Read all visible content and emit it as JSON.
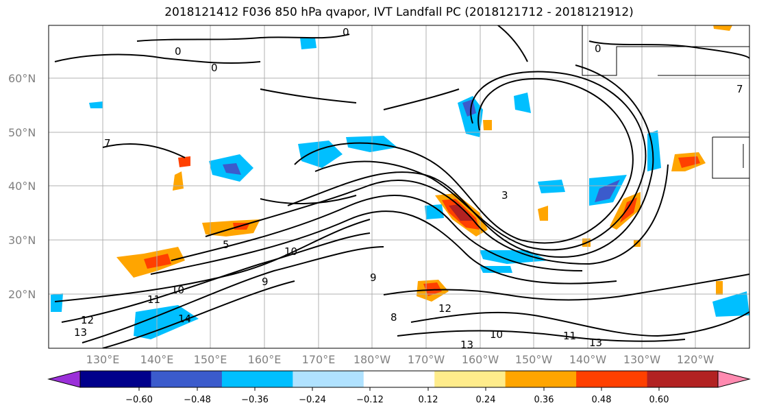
{
  "title": "2018121412 F036 850 hPa qvapor, IVT Landfall PC (2018121712 - 2018121912)",
  "lat_labels": [
    "60°N",
    "50°N",
    "40°N",
    "30°N",
    "20°N"
  ],
  "lon_labels": [
    "130°E",
    "140°E",
    "150°E",
    "160°E",
    "170°E",
    "180°W",
    "170°W",
    "160°W",
    "150°W",
    "140°W",
    "130°W",
    "120°W"
  ],
  "contour_labels": [
    "0",
    "0",
    "0",
    "0",
    "7",
    "3",
    "5",
    "10",
    "11",
    "10",
    "12",
    "13",
    "14",
    "8",
    "9",
    "12",
    "13",
    "10",
    "11",
    "13",
    "7",
    "9"
  ],
  "colorbar": {
    "colors": [
      "#9b30d9",
      "#00008b",
      "#3b5bcc",
      "#00bfff",
      "#b0e2ff",
      "#ffffff",
      "#ffec8b",
      "#ffa500",
      "#ff4000",
      "#b22222",
      "#ff8ab0"
    ],
    "ticks": [
      "−0.60",
      "−0.48",
      "−0.36",
      "−0.24",
      "−0.12",
      "0.12",
      "0.24",
      "0.36",
      "0.48",
      "0.60"
    ]
  }
}
